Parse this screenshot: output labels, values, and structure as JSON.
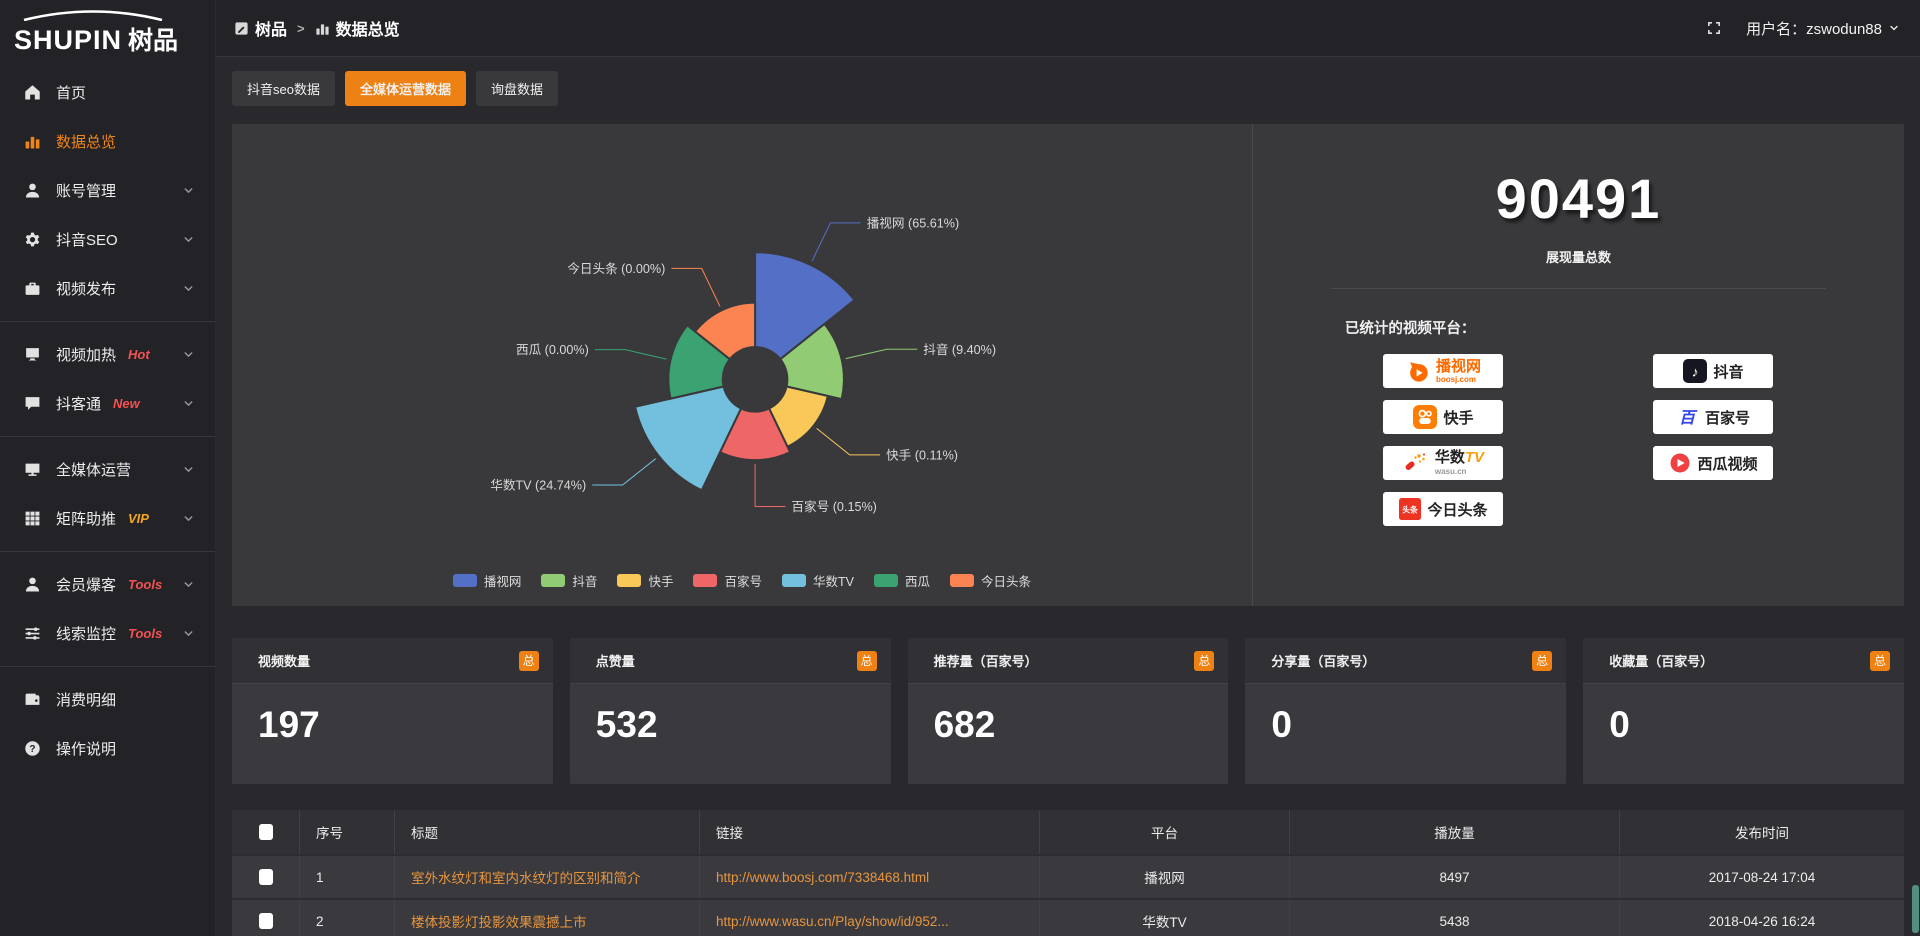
{
  "app": {
    "logo_en": "SHUPIN",
    "logo_cn": "树品"
  },
  "header": {
    "breadcrumb_home": "树品",
    "breadcrumb_page": "数据总览",
    "user": "用户名：zswodun88"
  },
  "tabs": [
    {
      "label": "抖音seo数据",
      "active": false
    },
    {
      "label": "全媒体运营数据",
      "active": true
    },
    {
      "label": "询盘数据",
      "active": false
    }
  ],
  "sidebar": {
    "items": [
      {
        "icon": "home-icon",
        "label": "首页",
        "active": false
      },
      {
        "icon": "bar-chart-icon",
        "label": "数据总览",
        "active": true
      },
      {
        "icon": "user-icon",
        "label": "账号管理",
        "chevron": true
      },
      {
        "icon": "gear-icon",
        "label": "抖音SEO",
        "chevron": true
      },
      {
        "icon": "briefcase-icon",
        "label": "视频发布",
        "chevron": true
      },
      {
        "icon": "screen-icon",
        "label": "视频加热",
        "tag": "Hot",
        "tag_color": "#f25252",
        "chevron": true
      },
      {
        "icon": "chat-icon",
        "label": "抖客通",
        "tag": "New",
        "tag_color": "#f25252",
        "chevron": true
      },
      {
        "icon": "monitor-icon",
        "label": "全媒体运营",
        "chevron": true
      },
      {
        "icon": "grid-icon",
        "label": "矩阵助推",
        "tag": "VIP",
        "tag_color": "#f5a623",
        "chevron": true
      },
      {
        "icon": "member-icon",
        "label": "会员爆客",
        "tag": "Tools",
        "tag_color": "#f25252",
        "chevron": true
      },
      {
        "icon": "sliders-icon",
        "label": "线索监控",
        "tag": "Tools",
        "tag_color": "#f25252",
        "chevron": true
      },
      {
        "icon": "wallet-icon",
        "label": "消费明细"
      },
      {
        "icon": "question-icon",
        "label": "操作说明"
      }
    ]
  },
  "chart_data": {
    "type": "pie",
    "style": "rose",
    "labels": [
      "播视网",
      "抖音",
      "快手",
      "百家号",
      "华数TV",
      "西瓜",
      "今日头条"
    ],
    "percentages": [
      65.61,
      9.4,
      0.11,
      0.15,
      24.74,
      0.0,
      0.0
    ],
    "colors": [
      "#5470c6",
      "#91cc75",
      "#fac858",
      "#ee6666",
      "#73c0de",
      "#3ba272",
      "#fc8452"
    ],
    "legend_position": "bottom",
    "inner_radius": 32,
    "display_radii": [
      126,
      88,
      74,
      80,
      122,
      86,
      76
    ]
  },
  "summary": {
    "total": "90491",
    "total_label": "展现量总数",
    "platforms_title": "已统计的视频平台：",
    "badges": [
      {
        "icon": "boosj-logo",
        "label": "播视网",
        "sub": "boosj.com"
      },
      {
        "icon": "douyin-logo",
        "label": "抖音"
      },
      {
        "icon": "kuaishou-logo",
        "label": "快手"
      },
      {
        "icon": "baijiahao-logo",
        "label": "百家号"
      },
      {
        "icon": "wasu-logo",
        "label": "华数",
        "suffix": "TV",
        "sub": "wasu.cn"
      },
      {
        "icon": "xigua-logo",
        "label": "西瓜视频"
      },
      {
        "icon": "toutiao-logo",
        "label": "今日头条"
      }
    ]
  },
  "stats": {
    "cards": [
      {
        "label": "视频数量",
        "badge": "总",
        "value": "197"
      },
      {
        "label": "点赞量",
        "badge": "总",
        "value": "532"
      },
      {
        "label": "推荐量（百家号）",
        "badge": "总",
        "value": "682"
      },
      {
        "label": "分享量（百家号）",
        "badge": "总",
        "value": "0"
      },
      {
        "label": "收藏量（百家号）",
        "badge": "总",
        "value": "0"
      }
    ]
  },
  "table": {
    "headers": [
      "序号",
      "标题",
      "链接",
      "平台",
      "播放量",
      "发布时间"
    ],
    "rows": [
      {
        "no": "1",
        "title": "室外水纹灯和室内水纹灯的区别和简介",
        "link": "http://www.boosj.com/7338468.html",
        "platform": "播视网",
        "plays": "8497",
        "time": "2017-08-24 17:04"
      },
      {
        "no": "2",
        "title": "楼体投影灯投影效果震撼上市",
        "link": "http://www.wasu.cn/Play/show/id/952...",
        "platform": "华数TV",
        "plays": "5438",
        "time": "2018-04-26 16:24"
      }
    ]
  }
}
